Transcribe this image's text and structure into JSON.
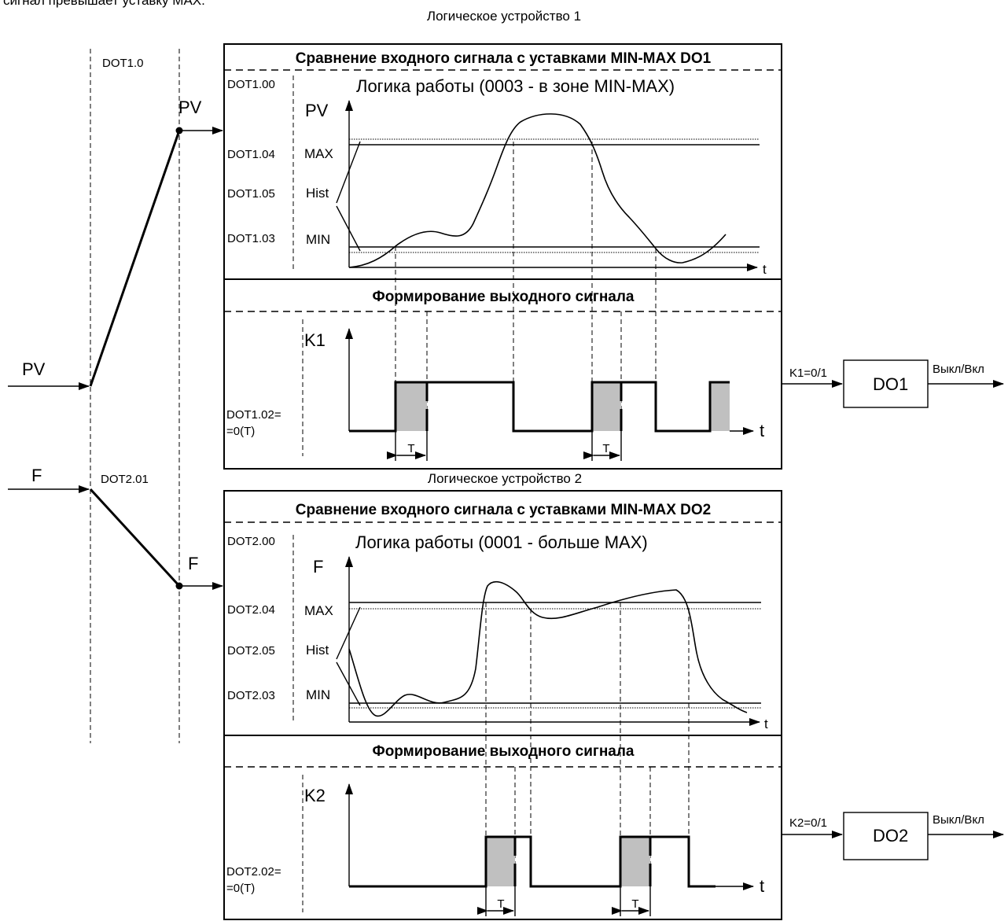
{
  "top_cut_text": "сигнал превышает уставку MAX.",
  "device1": {
    "caption": "Логическое устройство 1",
    "heading": "Сравнение входного сигнала с уставками MIN-MAX  DO1",
    "logic_param": "DOT1.00",
    "logic_text": "Логика работы (0003 - в зоне MIN-MAX)",
    "y_axis": "PV",
    "x_axis": "t",
    "max_param": "DOT1.04",
    "max_label": "MAX",
    "hist_param": "DOT1.05",
    "hist_label": "Hist",
    "min_param": "DOT1.03",
    "min_label": "MIN",
    "out_heading": "Формирование выходного сигнала",
    "out_axis": "K1",
    "delay_param_1": "DOT1.02=",
    "delay_param_2": "=0(T)",
    "delay_label": "T",
    "link_label": "K1=0/1",
    "do_label": "DO1",
    "out_label": "Выкл/Вкл"
  },
  "device2": {
    "caption": "Логическое устройство 2",
    "heading": "Сравнение входного сигнала с уставками MIN-MAX  DO2",
    "logic_param": "DOT2.00",
    "logic_text": "Логика работы (0001 - больше MAX)",
    "y_axis": "F",
    "x_axis": "t",
    "max_param": "DOT2.04",
    "max_label": "MAX",
    "hist_param": "DOT2.05",
    "hist_label": "Hist",
    "min_param": "DOT2.03",
    "min_label": "MIN",
    "out_heading": "Формирование выходного сигнала",
    "out_axis": "K2",
    "delay_param_1": "DOT2.02=",
    "delay_param_2": "=0(T)",
    "delay_label": "T",
    "link_label": "K2=0/1",
    "do_label": "DO2",
    "out_label": "Выкл/Вкл"
  },
  "routing": {
    "col1_label": "DOT1.0",
    "col2_label": "DOT2.01",
    "input_pv": "PV",
    "input_f": "F",
    "pv_out": "PV",
    "f_out": "F"
  }
}
